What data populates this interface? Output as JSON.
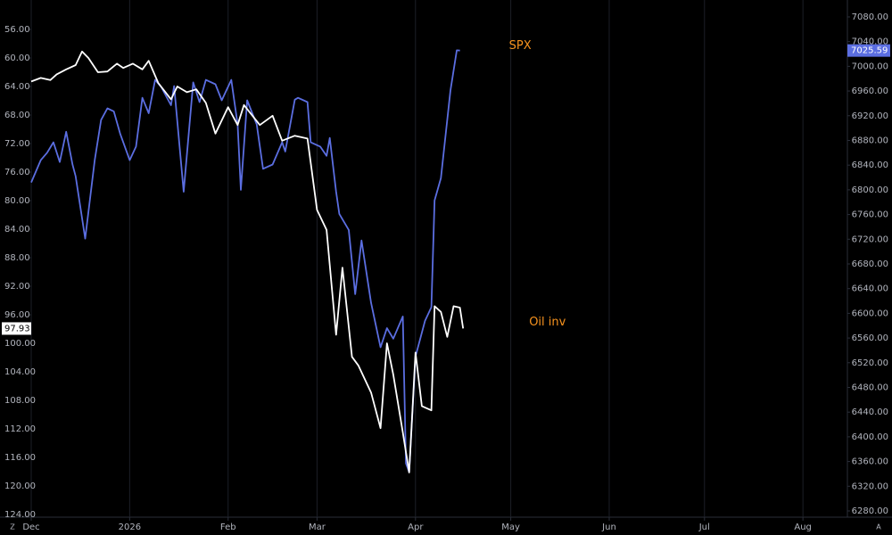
{
  "chart_data": {
    "type": "line",
    "xlim": [
      0,
      257
    ],
    "xticks": [
      {
        "value": 0,
        "label": "Dec"
      },
      {
        "value": 31,
        "label": "2026"
      },
      {
        "value": 62,
        "label": "Feb"
      },
      {
        "value": 90,
        "label": "Mar"
      },
      {
        "value": 121,
        "label": "Apr"
      },
      {
        "value": 151,
        "label": "May"
      },
      {
        "value": 182,
        "label": "Jun"
      },
      {
        "value": 212,
        "label": "Jul"
      },
      {
        "value": 243,
        "label": "Aug"
      }
    ],
    "ylim": [
      51.875,
      124.375
    ],
    "y_inverted": true,
    "yticks": [
      {
        "value": 56,
        "label": "56.00"
      },
      {
        "value": 60,
        "label": "60.00"
      },
      {
        "value": 64,
        "label": "64.00"
      },
      {
        "value": 68,
        "label": "68.00"
      },
      {
        "value": 72,
        "label": "72.00"
      },
      {
        "value": 76,
        "label": "76.00"
      },
      {
        "value": 80,
        "label": "80.00"
      },
      {
        "value": 84,
        "label": "84.00"
      },
      {
        "value": 88,
        "label": "88.00"
      },
      {
        "value": 92,
        "label": "92.00"
      },
      {
        "value": 96,
        "label": "96.00"
      },
      {
        "value": 100,
        "label": "100.00"
      },
      {
        "value": 104,
        "label": "104.00"
      },
      {
        "value": 108,
        "label": "108.00"
      },
      {
        "value": 112,
        "label": "112.00"
      },
      {
        "value": 116,
        "label": "116.00"
      },
      {
        "value": 120,
        "label": "120.00"
      },
      {
        "value": 124,
        "label": "124.00"
      }
    ],
    "y2lim": [
      6269.9,
      7107.4
    ],
    "y2ticks": [
      {
        "value": 6280,
        "label": "6280.00"
      },
      {
        "value": 6320,
        "label": "6320.00"
      },
      {
        "value": 6360,
        "label": "6360.00"
      },
      {
        "value": 6400,
        "label": "6400.00"
      },
      {
        "value": 6440,
        "label": "6440.00"
      },
      {
        "value": 6480,
        "label": "6480.00"
      },
      {
        "value": 6520,
        "label": "6520.00"
      },
      {
        "value": 6560,
        "label": "6560.00"
      },
      {
        "value": 6600,
        "label": "6600.00"
      },
      {
        "value": 6640,
        "label": "6640.00"
      },
      {
        "value": 6680,
        "label": "6680.00"
      },
      {
        "value": 6720,
        "label": "6720.00"
      },
      {
        "value": 6760,
        "label": "6760.00"
      },
      {
        "value": 6800,
        "label": "6800.00"
      },
      {
        "value": 6840,
        "label": "6840.00"
      },
      {
        "value": 6880,
        "label": "6880.00"
      },
      {
        "value": 6920,
        "label": "6920.00"
      },
      {
        "value": 6960,
        "label": "6960.00"
      },
      {
        "value": 7000,
        "label": "7000.00"
      },
      {
        "value": 7040,
        "label": "7040.00"
      },
      {
        "value": 7080,
        "label": "7080.00"
      }
    ],
    "grid": "vertical",
    "series": [
      {
        "name": "SPX",
        "color": "#5b6ee1",
        "axis": "y2",
        "last_value_label": "7025.59",
        "x": [
          0,
          3,
          5,
          7,
          9,
          11,
          13,
          14,
          17,
          20,
          22,
          24,
          26,
          28,
          31,
          33,
          35,
          37,
          39,
          41,
          44,
          45,
          48,
          51,
          53,
          55,
          58,
          60,
          63,
          65,
          66,
          68,
          71,
          73,
          76,
          79,
          80,
          83,
          84,
          87,
          88,
          91,
          93,
          94,
          96,
          97,
          100,
          102,
          104,
          107,
          110,
          112,
          114,
          117,
          118,
          119,
          121,
          124,
          126,
          127,
          129,
          132,
          134,
          135
        ],
        "values": [
          6812,
          6848,
          6860,
          6877,
          6845,
          6894,
          6841,
          6822,
          6721,
          6848,
          6913,
          6932,
          6927,
          6891,
          6848,
          6870,
          6949,
          6924,
          6978,
          6966,
          6937,
          6968,
          6797,
          6974,
          6942,
          6978,
          6971,
          6945,
          6978,
          6906,
          6800,
          6945,
          6906,
          6834,
          6841,
          6877,
          6862,
          6946,
          6949,
          6942,
          6877,
          6870,
          6855,
          6884,
          6797,
          6761,
          6735,
          6631,
          6718,
          6617,
          6545,
          6576,
          6559,
          6595,
          6357,
          6343,
          6530,
          6588,
          6610,
          6783,
          6819,
          6961,
          7026,
          7025.59
        ]
      },
      {
        "name": "Oil inv",
        "color": "#ffffff",
        "axis": "y",
        "last_value_label": "97.93",
        "x": [
          0,
          3,
          6,
          8,
          11,
          14,
          16,
          18,
          21,
          24,
          27,
          29,
          32,
          35,
          37,
          40,
          44,
          46,
          49,
          52,
          55,
          58,
          62,
          65,
          67,
          72,
          76,
          79,
          83,
          87,
          90,
          93,
          96,
          98,
          101,
          103,
          107,
          110,
          112,
          114,
          117,
          119,
          121,
          123,
          126,
          127,
          129,
          131,
          133,
          135,
          136
        ],
        "values": [
          63.3,
          62.8,
          63.1,
          62.3,
          61.6,
          61.0,
          59.1,
          60.0,
          62.0,
          61.9,
          60.8,
          61.4,
          60.8,
          61.6,
          60.4,
          63.5,
          65.8,
          64.0,
          64.8,
          64.4,
          66.3,
          70.6,
          66.9,
          69.4,
          66.6,
          69.4,
          68.1,
          71.6,
          70.9,
          71.3,
          81.3,
          84.1,
          98.8,
          89.4,
          101.9,
          103.1,
          106.9,
          111.9,
          100.0,
          104.4,
          112.5,
          118.1,
          101.3,
          108.8,
          109.4,
          94.8,
          95.6,
          99.1,
          94.8,
          95.0,
          97.93
        ]
      }
    ]
  },
  "controls": [
    "Z",
    "A"
  ]
}
